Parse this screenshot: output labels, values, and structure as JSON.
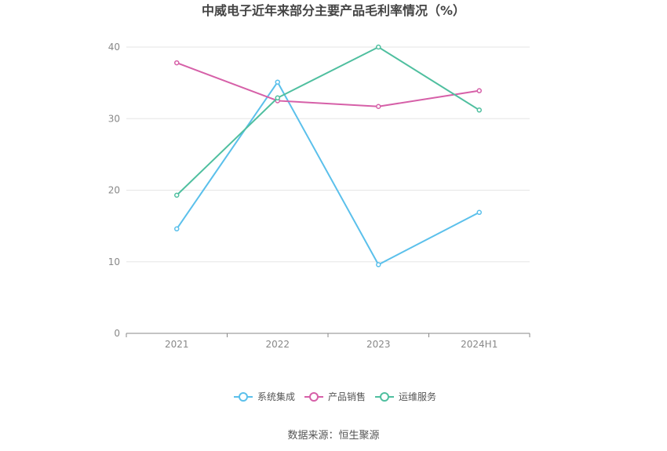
{
  "chart_data": {
    "type": "line",
    "title": "中威电子近年来部分主要产品毛利率情况（%）",
    "categories": [
      "2021",
      "2022",
      "2023",
      "2024H1"
    ],
    "ylim": [
      0,
      40
    ],
    "yticks": [
      0,
      10,
      20,
      30,
      40
    ],
    "grid": true,
    "legend_position": "bottom",
    "series": [
      {
        "name": "系统集成",
        "color": "#5bc0eb",
        "values": [
          14.6,
          35.1,
          9.6,
          16.9
        ]
      },
      {
        "name": "产品销售",
        "color": "#d660a8",
        "values": [
          37.8,
          32.5,
          31.7,
          33.9
        ]
      },
      {
        "name": "运维服务",
        "color": "#4fbf9f",
        "values": [
          19.3,
          32.9,
          40.0,
          31.2
        ]
      }
    ]
  },
  "source_label": "数据来源：恒生聚源"
}
